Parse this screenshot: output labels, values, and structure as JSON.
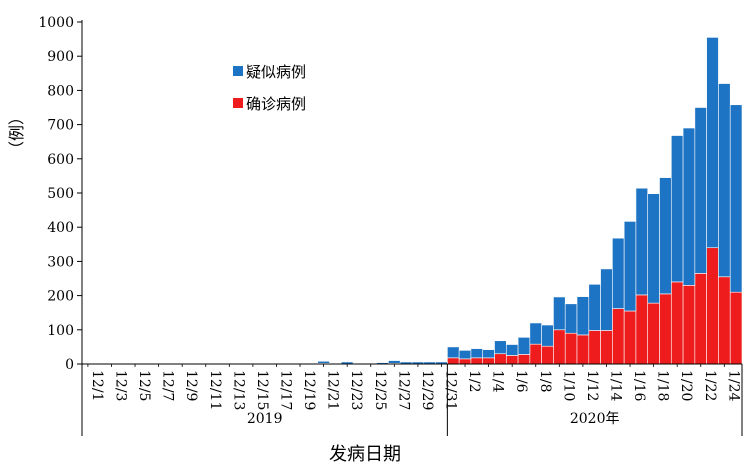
{
  "chart_data": {
    "type": "bar",
    "stacked": true,
    "ylabel": "（例）",
    "xlabel": "发病日期",
    "ylim": [
      0,
      1000
    ],
    "yticks": [
      0,
      100,
      200,
      300,
      400,
      500,
      600,
      700,
      800,
      900,
      1000
    ],
    "legend_position": "upper-left",
    "categories": [
      "12/1",
      "12/2",
      "12/3",
      "12/4",
      "12/5",
      "12/6",
      "12/7",
      "12/8",
      "12/9",
      "12/10",
      "12/11",
      "12/12",
      "12/13",
      "12/14",
      "12/15",
      "12/16",
      "12/17",
      "12/18",
      "12/19",
      "12/20",
      "12/21",
      "12/22",
      "12/23",
      "12/24",
      "12/25",
      "12/26",
      "12/27",
      "12/28",
      "12/29",
      "12/30",
      "12/31",
      "1/1",
      "1/2",
      "1/3",
      "1/4",
      "1/5",
      "1/6",
      "1/7",
      "1/8",
      "1/9",
      "1/10",
      "1/11",
      "1/12",
      "1/13",
      "1/14",
      "1/15",
      "1/16",
      "1/17",
      "1/18",
      "1/19",
      "1/20",
      "1/21",
      "1/22",
      "1/23",
      "1/24",
      "1/25"
    ],
    "tick_labels": [
      "12/1",
      "12/3",
      "12/5",
      "12/7",
      "12/9",
      "12/11",
      "12/13",
      "12/15",
      "12/17",
      "12/19",
      "12/21",
      "12/23",
      "12/25",
      "12/27",
      "12/29",
      "12/31",
      "1/2",
      "1/4",
      "1/6",
      "1/8",
      "1/10",
      "1/12",
      "1/14",
      "1/16",
      "1/18",
      "1/20",
      "1/22",
      "1/24"
    ],
    "groups": [
      {
        "label": "2019",
        "from": "12/1",
        "to": "12/31"
      },
      {
        "label": "2020年",
        "from": "1/1",
        "to": "1/25"
      }
    ],
    "series": [
      {
        "name": "确诊病例",
        "color": "#ee1c1c",
        "values": [
          0,
          0,
          0,
          0,
          0,
          0,
          0,
          0,
          0,
          0,
          0,
          0,
          0,
          0,
          0,
          0,
          0,
          0,
          0,
          0,
          2,
          0,
          0,
          0,
          0,
          0,
          2,
          0,
          0,
          0,
          0,
          18,
          15,
          18,
          18,
          30,
          25,
          28,
          58,
          52,
          100,
          90,
          85,
          98,
          98,
          162,
          155,
          202,
          178,
          205,
          240,
          230,
          265,
          340,
          255,
          210
        ]
      },
      {
        "name": "疑似病例",
        "color": "#1e74c4",
        "values": [
          1,
          0,
          1,
          1,
          1,
          0,
          0,
          1,
          0,
          1,
          2,
          0,
          0,
          1,
          1,
          0,
          1,
          0,
          2,
          2,
          6,
          2,
          6,
          2,
          2,
          4,
          8,
          6,
          6,
          6,
          6,
          32,
          25,
          27,
          24,
          38,
          32,
          50,
          62,
          62,
          96,
          86,
          112,
          135,
          180,
          206,
          262,
          312,
          320,
          340,
          428,
          460,
          485,
          615,
          565,
          548
        ]
      }
    ]
  }
}
